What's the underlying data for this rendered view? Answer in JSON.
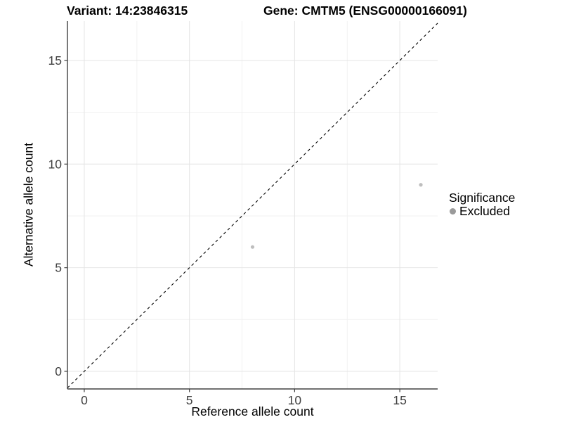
{
  "chart_data": {
    "type": "scatter",
    "titles": {
      "variant": "Variant: 14:23846315",
      "gene": "Gene: CMTM5 (ENSG00000166091)"
    },
    "xlabel": "Reference allele count",
    "ylabel": "Alternative allele count",
    "xlim": [
      -0.8,
      16.8
    ],
    "ylim": [
      -0.85,
      16.9
    ],
    "x_ticks": [
      0,
      5,
      10,
      15
    ],
    "y_ticks": [
      0,
      5,
      10,
      15
    ],
    "x_minor_ticks": [
      2.5,
      7.5,
      12.5
    ],
    "y_minor_ticks": [
      2.5,
      7.5,
      12.5
    ],
    "grid": true,
    "identity_line": {
      "style": "dashed",
      "color": "#000000"
    },
    "series": [
      {
        "name": "Excluded",
        "color": "#bebebe",
        "points": [
          {
            "x": 8,
            "y": 6
          },
          {
            "x": 16,
            "y": 9
          }
        ]
      }
    ],
    "legend": {
      "title": "Significance",
      "position": "right",
      "entries": [
        {
          "label": "Excluded",
          "color": "#9a9a9a"
        }
      ]
    },
    "colors": {
      "axis": "#404040",
      "grid_major": "#e4e4e4",
      "grid_minor": "#f1f1f1",
      "tick_label": "#404040"
    }
  }
}
